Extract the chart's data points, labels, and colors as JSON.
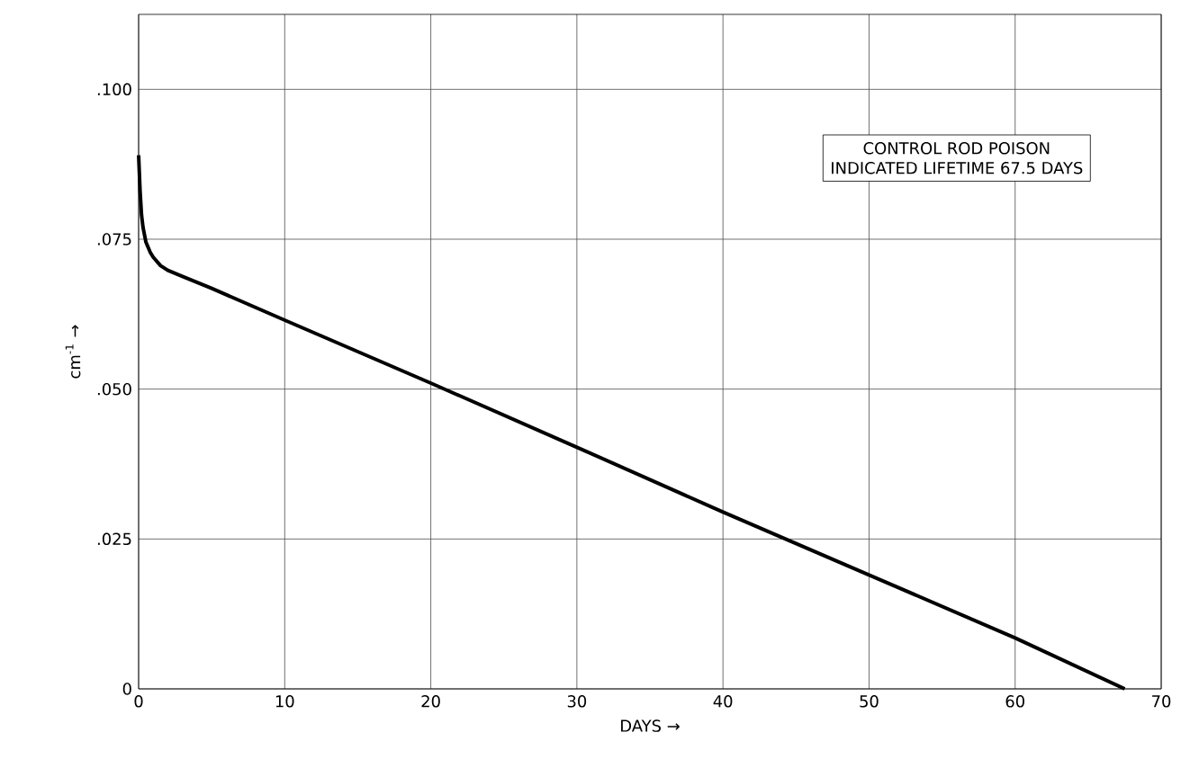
{
  "chart_data": {
    "type": "line",
    "xlabel": "DAYS →",
    "ylabel": "cm$^{-1}$ →",
    "annotations": [
      "CONTROL ROD POISON",
      "INDICATED LIFETIME 67.5 DAYS"
    ],
    "series": [
      {
        "color": "#000000",
        "x": [
          0,
          0.1,
          0.2,
          0.3,
          0.5,
          0.8,
          1,
          1.5,
          2,
          3,
          5,
          10,
          20,
          30,
          40,
          50,
          60,
          67.5
        ],
        "values": [
          0.089,
          0.083,
          0.079,
          0.077,
          0.0745,
          0.0728,
          0.072,
          0.0706,
          0.0698,
          0.0688,
          0.0668,
          0.0615,
          0.051,
          0.0403,
          0.0295,
          0.019,
          0.0085,
          0
        ]
      }
    ],
    "xlim": [
      0,
      70
    ],
    "ylim": [
      0,
      0.1125
    ],
    "xticks": [
      0,
      10,
      20,
      30,
      40,
      50,
      60,
      70
    ],
    "yticks": [
      0,
      {
        "value": 0.025,
        "label": ".025"
      },
      {
        "value": 0.05,
        "label": ".050"
      },
      {
        "value": 0.075,
        "label": ".075"
      },
      {
        "value": 0.1,
        "label": ".100"
      }
    ],
    "grid": true,
    "marker": "none",
    "line_style": "solid"
  }
}
